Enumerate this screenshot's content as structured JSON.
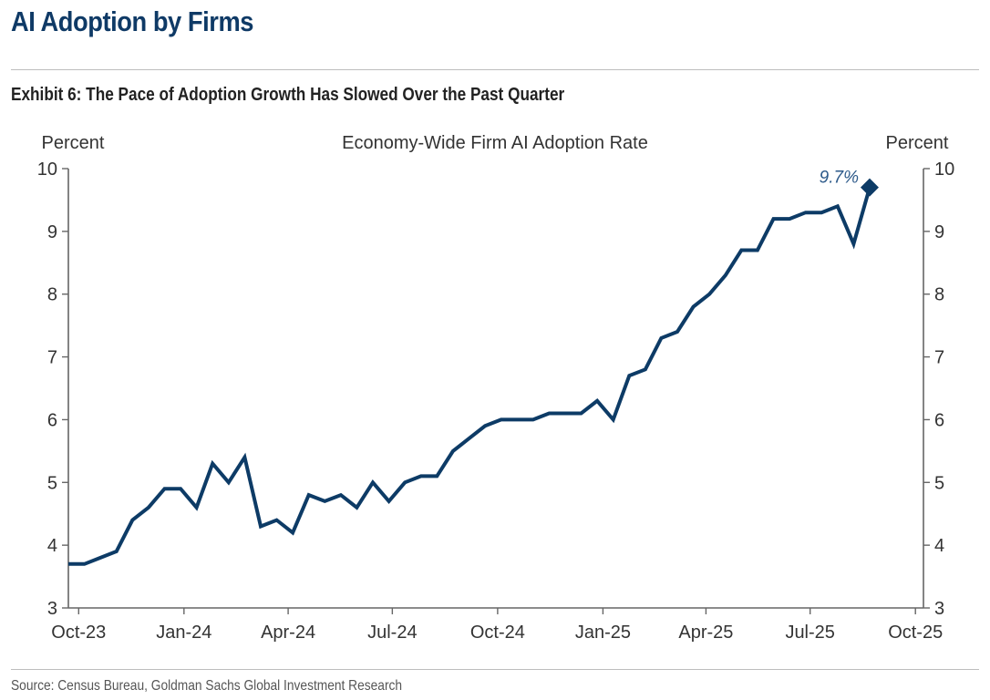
{
  "header": {
    "title": "AI Adoption by Firms",
    "exhibit": "Exhibit 6: The Pace of Adoption Growth Has Slowed Over the Past Quarter"
  },
  "footer": {
    "source": "Source: Census Bureau, Goldman Sachs Global Investment Research"
  },
  "colors": {
    "title": "#0f3a66",
    "series": "#0d3b66",
    "axis": "#666666",
    "annotation": "#2d5a8a"
  },
  "chart_data": {
    "type": "line",
    "title": "Economy-Wide Firm AI Adoption Rate",
    "ylabel_left": "Percent",
    "ylabel_right": "Percent",
    "xlabel": "",
    "ylim": [
      3,
      10
    ],
    "yticks": [
      3,
      4,
      5,
      6,
      7,
      8,
      9,
      10
    ],
    "xlim": [
      "2023-09-22",
      "2025-10-08"
    ],
    "xticks": [
      {
        "label": "Oct-23",
        "date": "2023-10-01"
      },
      {
        "label": "Jan-24",
        "date": "2024-01-01"
      },
      {
        "label": "Apr-24",
        "date": "2024-04-01"
      },
      {
        "label": "Jul-24",
        "date": "2024-07-01"
      },
      {
        "label": "Oct-24",
        "date": "2024-10-01"
      },
      {
        "label": "Jan-25",
        "date": "2025-01-01"
      },
      {
        "label": "Apr-25",
        "date": "2025-04-01"
      },
      {
        "label": "Jul-25",
        "date": "2025-07-01"
      },
      {
        "label": "Oct-25",
        "date": "2025-10-01"
      }
    ],
    "grid": false,
    "series": [
      {
        "name": "Economy-Wide Firm AI Adoption Rate",
        "frequency": "biweekly",
        "start": "2023-09-22",
        "values": [
          3.7,
          3.7,
          3.8,
          3.9,
          4.4,
          4.6,
          4.9,
          4.9,
          4.6,
          5.3,
          5.0,
          5.4,
          4.3,
          4.4,
          4.2,
          4.8,
          4.7,
          4.8,
          4.6,
          5.0,
          4.7,
          5.0,
          5.1,
          5.1,
          5.5,
          5.7,
          5.9,
          6.0,
          6.0,
          6.0,
          6.1,
          6.1,
          6.1,
          6.3,
          6.0,
          6.7,
          6.8,
          7.3,
          7.4,
          7.8,
          8.0,
          8.3,
          8.7,
          8.7,
          9.2,
          9.2,
          9.3,
          9.3,
          9.4,
          8.8,
          9.7
        ]
      }
    ],
    "annotations": [
      {
        "text": "9.7%",
        "point_index": 50,
        "marker": "diamond"
      }
    ]
  }
}
